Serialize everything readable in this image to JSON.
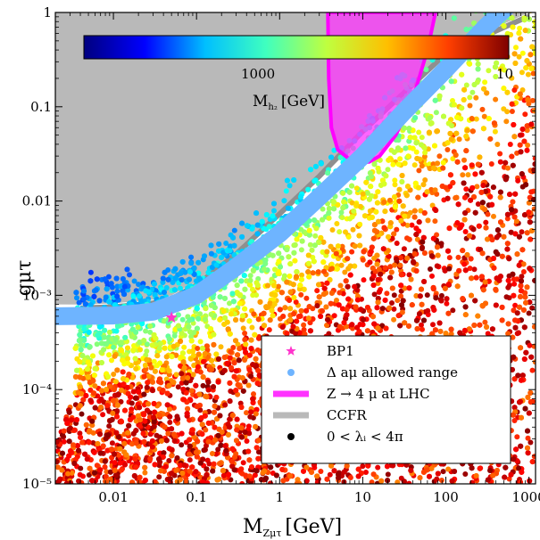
{
  "chart_data": {
    "type": "scatter",
    "xscale": "log",
    "yscale": "log",
    "xlim": [
      0.002,
      1200
    ],
    "ylim": [
      1e-05,
      1
    ],
    "x_ticks": [
      0.01,
      0.1,
      1,
      10,
      100,
      1000
    ],
    "x_tick_labels": [
      "0.01",
      "0.1",
      "1",
      "10",
      "100",
      "1000"
    ],
    "y_ticks": [
      1e-05,
      0.0001,
      0.001,
      0.01,
      0.1,
      1
    ],
    "y_tick_labels": [
      "10⁻⁵",
      "10⁻⁴",
      "10⁻³",
      "0.01",
      "0.1",
      "1"
    ],
    "xlabel": "M",
    "xlabel_sub": "Zμτ",
    "xlabel_unit": "[GeV]",
    "ylabel": "gμτ",
    "colorbar": {
      "label": "M",
      "label_sub": "h₂",
      "label_unit": "[GeV]",
      "tick_labels": [
        "1000",
        "10"
      ],
      "colormap": [
        "#00007f",
        "#0000ff",
        "#00bfff",
        "#3fffbf",
        "#bfff3f",
        "#ffbf00",
        "#ff3f00",
        "#7f0000"
      ],
      "range": [
        10000,
        1
      ]
    },
    "regions": [
      {
        "name": "CCFR",
        "type": "excluded",
        "color": "#b9b9b9",
        "boundary_x": [
          0.004,
          0.01,
          0.03,
          0.05,
          0.1,
          0.3,
          1,
          3,
          10,
          100,
          1000
        ],
        "boundary_y": [
          0.0008,
          0.00082,
          0.0009,
          0.001,
          0.0014,
          0.003,
          0.008,
          0.02,
          0.06,
          0.4,
          1.0
        ]
      },
      {
        "name": "Z → 4 μ at LHC",
        "type": "excluded",
        "color": "#ff33ff",
        "boundary_x": [
          3.8,
          3.9,
          4.2,
          5,
          8,
          12,
          16,
          25,
          40,
          60,
          75
        ],
        "boundary_y": [
          1.0,
          0.2,
          0.06,
          0.035,
          0.025,
          0.026,
          0.03,
          0.05,
          0.12,
          0.4,
          1.0
        ]
      }
    ],
    "band": {
      "name": "Δ aμ allowed range",
      "color": "#6eb4ff",
      "center_x": [
        0.002,
        0.01,
        0.03,
        0.1,
        0.3,
        1,
        3,
        10,
        30,
        100,
        300,
        800
      ],
      "center_y": [
        0.0006,
        0.00061,
        0.00067,
        0.001,
        0.002,
        0.0045,
        0.011,
        0.03,
        0.085,
        0.25,
        0.7,
        1.6
      ]
    },
    "benchmark": {
      "name": "BP1",
      "x": 0.05,
      "y": 0.00058,
      "color": "#ff33cc"
    },
    "scatter": {
      "name": "0 < λᵢ < 4π",
      "color_by": "M_h2",
      "approx_points": 9000
    },
    "legend": {
      "position": "lower-right",
      "items": [
        {
          "label": "BP1",
          "marker": "star",
          "color": "#ff33cc"
        },
        {
          "label": "Δ aμ allowed range",
          "marker": "dot",
          "color": "#6eb4ff"
        },
        {
          "label": "Z → 4 μ at LHC",
          "marker": "line",
          "color": "#ff33ff"
        },
        {
          "label": "CCFR",
          "marker": "line",
          "color": "#b9b9b9"
        },
        {
          "label": "0 < λᵢ < 4π",
          "marker": "dot",
          "color": "#000000"
        }
      ]
    }
  }
}
